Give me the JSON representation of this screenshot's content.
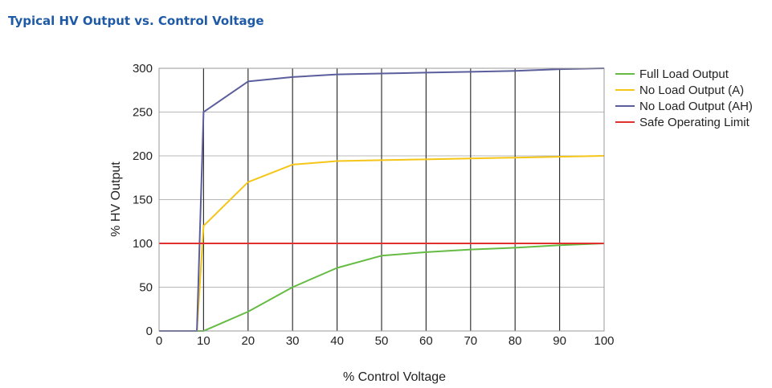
{
  "header": {
    "title": "Typical HV Output vs. Control Voltage"
  },
  "chart_data": {
    "type": "line",
    "title": "",
    "xlabel": "% Control Voltage",
    "ylabel": "% HV Output",
    "xlim": [
      0,
      100
    ],
    "ylim": [
      0,
      300
    ],
    "x_ticks": [
      0,
      10,
      20,
      30,
      40,
      50,
      60,
      70,
      80,
      90,
      100
    ],
    "y_ticks": [
      0,
      50,
      100,
      150,
      200,
      250,
      300
    ],
    "grid": true,
    "legend_position": "right",
    "series": [
      {
        "name": "Full Load Output",
        "color": "#66bb44",
        "x": [
          0,
          8.5,
          10,
          20,
          30,
          40,
          50,
          60,
          70,
          80,
          90,
          100
        ],
        "y": [
          0,
          0,
          0,
          22,
          50,
          72,
          86,
          90,
          93,
          95,
          98,
          100
        ]
      },
      {
        "name": "No Load Output (A)",
        "color": "#f5c518",
        "x": [
          0,
          8.5,
          10,
          20,
          30,
          40,
          50,
          60,
          70,
          80,
          90,
          100
        ],
        "y": [
          0,
          0,
          120,
          170,
          190,
          194,
          195,
          196,
          197,
          198,
          199,
          200
        ]
      },
      {
        "name": "No Load Output (AH)",
        "color": "#5b5e9c",
        "x": [
          0,
          8.5,
          10,
          20,
          30,
          40,
          50,
          60,
          70,
          80,
          90,
          100
        ],
        "y": [
          0,
          0,
          250,
          285,
          290,
          293,
          294,
          295,
          296,
          297,
          299,
          300
        ]
      },
      {
        "name": "Safe Operating Limit",
        "color": "#e03030",
        "x": [
          0,
          100
        ],
        "y": [
          100,
          100
        ]
      }
    ]
  }
}
